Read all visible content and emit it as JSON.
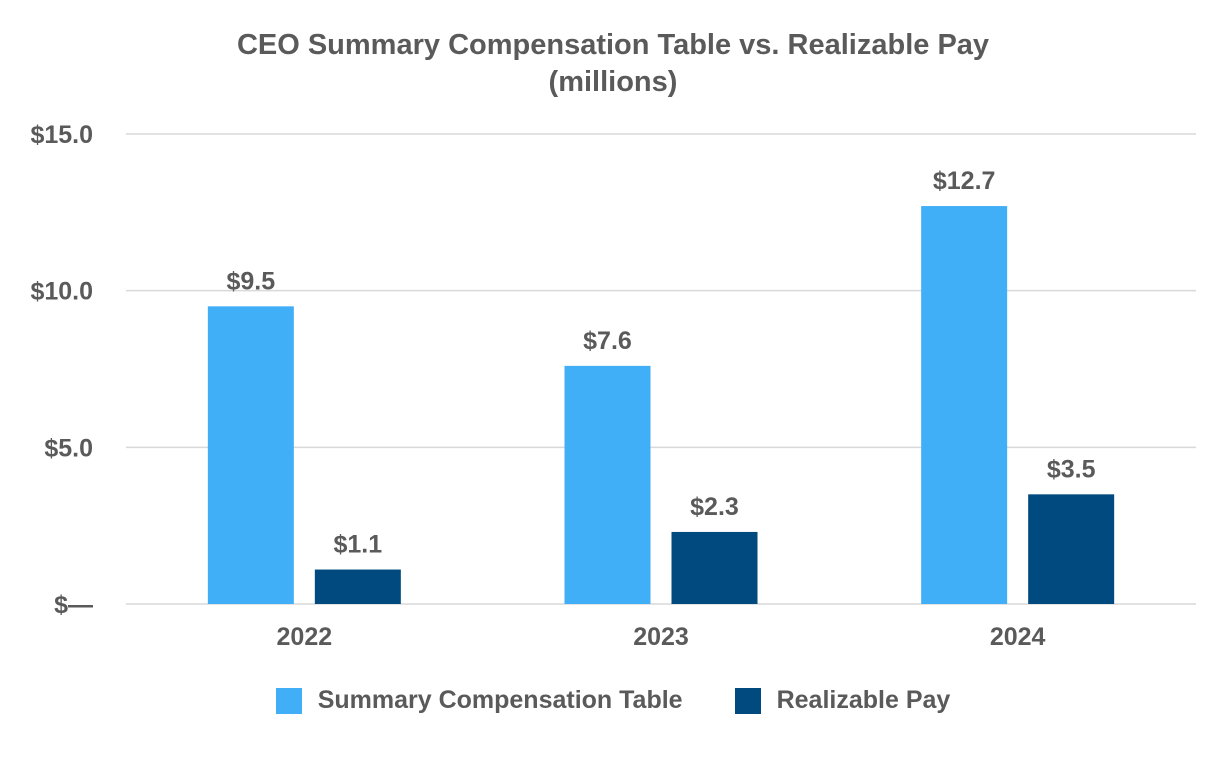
{
  "chart_data": {
    "type": "bar",
    "title": "CEO Summary Compensation Table vs. Realizable Pay",
    "subtitle": "(millions)",
    "categories": [
      "2022",
      "2023",
      "2024"
    ],
    "series": [
      {
        "name": "Summary Compensation Table",
        "color": "#41aef8",
        "values": [
          9.5,
          7.6,
          12.7
        ],
        "labels": [
          "$9.5",
          "$7.6",
          "$12.7"
        ]
      },
      {
        "name": "Realizable Pay",
        "color": "#004a7f",
        "values": [
          1.1,
          2.3,
          3.5
        ],
        "labels": [
          "$1.1",
          "$2.3",
          "$3.5"
        ]
      }
    ],
    "ylim": [
      0,
      15
    ],
    "yticks": [
      0,
      5,
      10,
      15
    ],
    "ytick_labels": [
      "$—",
      "$5.0",
      "$10.0",
      "$15.0"
    ],
    "xlabel": "",
    "ylabel": "",
    "grid": true,
    "legend_position": "bottom"
  }
}
